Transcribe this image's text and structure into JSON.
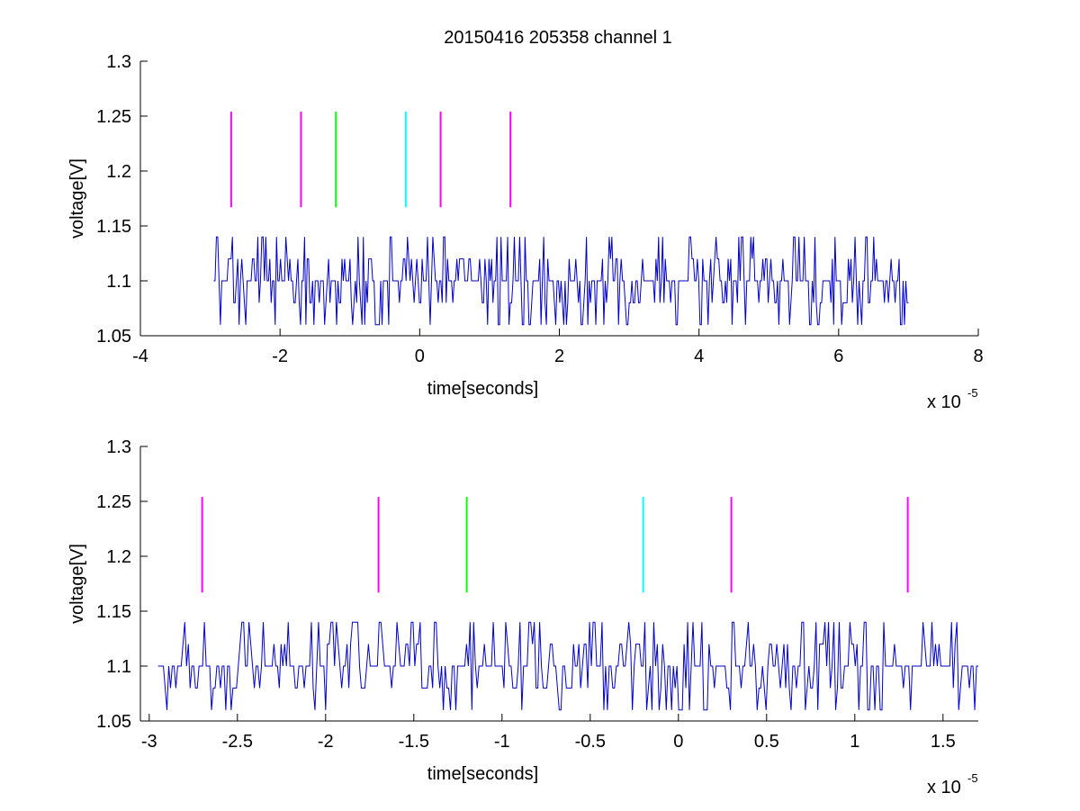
{
  "figure": {
    "title": "20150416 205358 channel 1"
  },
  "chart_data": [
    {
      "type": "line",
      "title": "20150416 205358 channel 1",
      "xlabel": "time[seconds]",
      "ylabel": "voltage[V]",
      "x_exponent_base": "x 10",
      "x_exponent": "-5",
      "xlim": [
        -4,
        8
      ],
      "ylim": [
        1.05,
        1.3
      ],
      "xticks": [
        -4,
        -2,
        0,
        2,
        4,
        6,
        8
      ],
      "xtick_labels": [
        "-4",
        "-2",
        "0",
        "2",
        "4",
        "6",
        "8"
      ],
      "yticks": [
        1.05,
        1.1,
        1.15,
        1.2,
        1.25,
        1.3
      ],
      "ytick_labels": [
        "1.05",
        "1.1",
        "1.15",
        "1.2",
        "1.25",
        "1.3"
      ],
      "grid": false,
      "signal": {
        "color": "#0000c8",
        "x_start": -2.95,
        "x_end": 7.0,
        "baseline": 1.1,
        "levels": [
          1.06,
          1.08,
          1.1,
          1.12,
          1.14
        ],
        "samples": 520,
        "seed": 7
      },
      "markers": [
        {
          "x": -2.7,
          "y_low": 1.167,
          "y_high": 1.254,
          "color": "#ff00ff"
        },
        {
          "x": -1.7,
          "y_low": 1.167,
          "y_high": 1.254,
          "color": "#ff00ff"
        },
        {
          "x": -1.2,
          "y_low": 1.167,
          "y_high": 1.254,
          "color": "#00ff00"
        },
        {
          "x": -0.2,
          "y_low": 1.167,
          "y_high": 1.254,
          "color": "#00ffff"
        },
        {
          "x": 0.3,
          "y_low": 1.167,
          "y_high": 1.254,
          "color": "#ff00ff"
        },
        {
          "x": 1.3,
          "y_low": 1.167,
          "y_high": 1.254,
          "color": "#ff00ff"
        }
      ]
    },
    {
      "type": "line",
      "title": "",
      "xlabel": "time[seconds]",
      "ylabel": "voltage[V]",
      "x_exponent_base": "x 10",
      "x_exponent": "-5",
      "xlim": [
        -3.05,
        1.7
      ],
      "ylim": [
        1.05,
        1.3
      ],
      "xticks": [
        -3,
        -2.5,
        -2,
        -1.5,
        -1,
        -0.5,
        0,
        0.5,
        1,
        1.5
      ],
      "xtick_labels": [
        "-3",
        "-2.5",
        "-2",
        "-1.5",
        "-1",
        "-0.5",
        "0",
        "0.5",
        "1",
        "1.5"
      ],
      "yticks": [
        1.05,
        1.1,
        1.15,
        1.2,
        1.25,
        1.3
      ],
      "ytick_labels": [
        "1.05",
        "1.1",
        "1.15",
        "1.2",
        "1.25",
        "1.3"
      ],
      "grid": false,
      "signal": {
        "color": "#0000c8",
        "x_start": -2.95,
        "x_end": 1.7,
        "baseline": 1.1,
        "levels": [
          1.06,
          1.08,
          1.1,
          1.12,
          1.14
        ],
        "samples": 460,
        "seed": 11
      },
      "markers": [
        {
          "x": -2.7,
          "y_low": 1.167,
          "y_high": 1.254,
          "color": "#ff00ff"
        },
        {
          "x": -1.7,
          "y_low": 1.167,
          "y_high": 1.254,
          "color": "#ff00ff"
        },
        {
          "x": -1.2,
          "y_low": 1.167,
          "y_high": 1.254,
          "color": "#00ff00"
        },
        {
          "x": -0.2,
          "y_low": 1.167,
          "y_high": 1.254,
          "color": "#00ffff"
        },
        {
          "x": 0.3,
          "y_low": 1.167,
          "y_high": 1.254,
          "color": "#ff00ff"
        },
        {
          "x": 1.3,
          "y_low": 1.167,
          "y_high": 1.254,
          "color": "#ff00ff"
        }
      ]
    }
  ]
}
